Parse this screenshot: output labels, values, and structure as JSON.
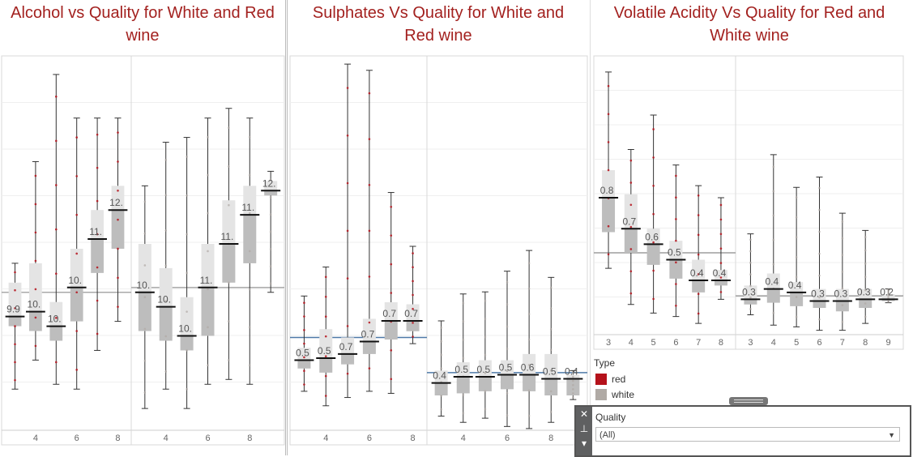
{
  "colors": {
    "red": "#b5121b",
    "white": "#b0aaa5",
    "title": "#a3211f",
    "refline_blue": "#4e79a7",
    "refline_gray": "#9e9e9e"
  },
  "chart_data": [
    {
      "type": "box",
      "title": "Alcohol vs Quality for White and Red wine",
      "xlabel": "",
      "ylabel": "",
      "ylim": [
        7.5,
        15.2
      ],
      "panels": [
        {
          "type": "red",
          "x_ticks": [
            4,
            6,
            8
          ],
          "reference_line": 10.4,
          "boxes": [
            {
              "q": 3,
              "min": 8.4,
              "q1": 9.7,
              "median": 9.9,
              "q3": 10.6,
              "max": 11.0,
              "label": "9.9"
            },
            {
              "q": 4,
              "min": 9.0,
              "q1": 9.6,
              "median": 10.0,
              "q3": 11.0,
              "max": 13.1,
              "label": "10."
            },
            {
              "q": 5,
              "min": 8.5,
              "q1": 9.4,
              "median": 9.7,
              "q3": 10.2,
              "max": 14.9,
              "label": "10."
            },
            {
              "q": 6,
              "min": 8.4,
              "q1": 9.8,
              "median": 10.5,
              "q3": 11.3,
              "max": 14.0,
              "label": "10."
            },
            {
              "q": 7,
              "min": 9.2,
              "q1": 10.8,
              "median": 11.5,
              "q3": 12.1,
              "max": 14.0,
              "label": "11."
            },
            {
              "q": 8,
              "min": 9.8,
              "q1": 11.3,
              "median": 12.1,
              "q3": 12.6,
              "max": 14.0,
              "label": "12."
            }
          ]
        },
        {
          "type": "white",
          "x_ticks": [
            4,
            6,
            8
          ],
          "reference_line": 10.5,
          "boxes": [
            {
              "q": 3,
              "min": 8.0,
              "q1": 9.6,
              "median": 10.4,
              "q3": 11.4,
              "max": 12.6,
              "label": "10."
            },
            {
              "q": 4,
              "min": 8.4,
              "q1": 9.4,
              "median": 10.1,
              "q3": 10.9,
              "max": 13.5,
              "label": "10."
            },
            {
              "q": 5,
              "min": 8.0,
              "q1": 9.2,
              "median": 9.5,
              "q3": 10.3,
              "max": 13.6,
              "label": "10."
            },
            {
              "q": 6,
              "min": 8.5,
              "q1": 9.5,
              "median": 10.5,
              "q3": 11.4,
              "max": 14.0,
              "label": "11."
            },
            {
              "q": 7,
              "min": 8.6,
              "q1": 10.6,
              "median": 11.4,
              "q3": 12.3,
              "max": 14.2,
              "label": "11."
            },
            {
              "q": 8,
              "min": 8.5,
              "q1": 11.0,
              "median": 12.0,
              "q3": 12.6,
              "max": 14.0,
              "label": "11."
            },
            {
              "q": 9,
              "min": 10.4,
              "q1": 12.4,
              "median": 12.5,
              "q3": 12.7,
              "max": 12.9,
              "label": "12."
            }
          ]
        }
      ]
    },
    {
      "type": "box",
      "title": "Sulphates Vs Quality for White and Red wine",
      "xlabel": "",
      "ylabel": "",
      "ylim": [
        0.2,
        2.0
      ],
      "panels": [
        {
          "type": "red",
          "x_ticks": [
            4,
            6,
            8
          ],
          "reference_line": 0.66,
          "boxes": [
            {
              "q": 3,
              "min": 0.4,
              "q1": 0.51,
              "median": 0.55,
              "q3": 0.61,
              "max": 0.86,
              "label": "0.5"
            },
            {
              "q": 4,
              "min": 0.33,
              "q1": 0.49,
              "median": 0.56,
              "q3": 0.7,
              "max": 1.0,
              "label": "0.5"
            },
            {
              "q": 5,
              "min": 0.37,
              "q1": 0.53,
              "median": 0.58,
              "q3": 0.66,
              "max": 1.98,
              "label": "0.7"
            },
            {
              "q": 6,
              "min": 0.4,
              "q1": 0.58,
              "median": 0.64,
              "q3": 0.75,
              "max": 1.95,
              "label": "0.7"
            },
            {
              "q": 7,
              "min": 0.39,
              "q1": 0.65,
              "median": 0.74,
              "q3": 0.83,
              "max": 1.36,
              "label": "0.7"
            },
            {
              "q": 8,
              "min": 0.63,
              "q1": 0.69,
              "median": 0.74,
              "q3": 0.82,
              "max": 1.1,
              "label": "0.7"
            }
          ]
        },
        {
          "type": "white",
          "x_ticks": [
            4,
            6,
            8
          ],
          "reference_line": 0.49,
          "boxes": [
            {
              "q": 3,
              "min": 0.28,
              "q1": 0.38,
              "median": 0.44,
              "q3": 0.5,
              "max": 0.74,
              "label": "0.4"
            },
            {
              "q": 4,
              "min": 0.25,
              "q1": 0.39,
              "median": 0.47,
              "q3": 0.54,
              "max": 0.87,
              "label": "0.5"
            },
            {
              "q": 5,
              "min": 0.27,
              "q1": 0.4,
              "median": 0.47,
              "q3": 0.55,
              "max": 0.88,
              "label": "0.5"
            },
            {
              "q": 6,
              "min": 0.23,
              "q1": 0.41,
              "median": 0.48,
              "q3": 0.55,
              "max": 0.98,
              "label": "0.5"
            },
            {
              "q": 7,
              "min": 0.22,
              "q1": 0.4,
              "median": 0.48,
              "q3": 0.58,
              "max": 1.08,
              "label": "0.6"
            },
            {
              "q": 8,
              "min": 0.25,
              "q1": 0.38,
              "median": 0.46,
              "q3": 0.58,
              "max": 0.95,
              "label": "0.5"
            },
            {
              "q": 9,
              "min": 0.36,
              "q1": 0.38,
              "median": 0.46,
              "q3": 0.48,
              "max": 0.5,
              "label": "0.4"
            }
          ]
        }
      ]
    },
    {
      "type": "box",
      "title": "Volatile Acidity Vs Quality for Red and White wine",
      "xlabel": "",
      "ylabel": "",
      "ylim": [
        0.05,
        1.65
      ],
      "panels": [
        {
          "type": "red",
          "x_ticks": [
            3,
            4,
            5,
            6,
            7,
            8
          ],
          "reference_line": 0.53,
          "boxes": [
            {
              "q": 3,
              "min": 0.44,
              "q1": 0.65,
              "median": 0.85,
              "q3": 1.01,
              "max": 1.58,
              "label": "0.8"
            },
            {
              "q": 4,
              "min": 0.23,
              "q1": 0.53,
              "median": 0.67,
              "q3": 0.87,
              "max": 1.13,
              "label": "0.7"
            },
            {
              "q": 5,
              "min": 0.18,
              "q1": 0.46,
              "median": 0.58,
              "q3": 0.67,
              "max": 1.33,
              "label": "0.6"
            },
            {
              "q": 6,
              "min": 0.16,
              "q1": 0.38,
              "median": 0.49,
              "q3": 0.6,
              "max": 1.04,
              "label": "0.5"
            },
            {
              "q": 7,
              "min": 0.12,
              "q1": 0.3,
              "median": 0.37,
              "q3": 0.49,
              "max": 0.92,
              "label": "0.4"
            },
            {
              "q": 8,
              "min": 0.26,
              "q1": 0.34,
              "median": 0.37,
              "q3": 0.43,
              "max": 0.85,
              "label": "0.4"
            }
          ]
        },
        {
          "type": "white",
          "x_ticks": [
            3,
            4,
            5,
            6,
            7,
            8,
            9
          ],
          "reference_line": 0.28,
          "boxes": [
            {
              "q": 3,
              "min": 0.17,
              "q1": 0.23,
              "median": 0.26,
              "q3": 0.34,
              "max": 0.64,
              "label": "0.3"
            },
            {
              "q": 4,
              "min": 0.11,
              "q1": 0.24,
              "median": 0.32,
              "q3": 0.41,
              "max": 1.1,
              "label": "0.4"
            },
            {
              "q": 5,
              "min": 0.1,
              "q1": 0.22,
              "median": 0.3,
              "q3": 0.36,
              "max": 0.91,
              "label": "0.4"
            },
            {
              "q": 6,
              "min": 0.08,
              "q1": 0.21,
              "median": 0.25,
              "q3": 0.32,
              "max": 0.97,
              "label": "0.3"
            },
            {
              "q": 7,
              "min": 0.08,
              "q1": 0.19,
              "median": 0.25,
              "q3": 0.32,
              "max": 0.76,
              "label": "0.3"
            },
            {
              "q": 8,
              "min": 0.12,
              "q1": 0.21,
              "median": 0.26,
              "q3": 0.32,
              "max": 0.66,
              "label": "0.3"
            },
            {
              "q": 9,
              "min": 0.24,
              "q1": 0.25,
              "median": 0.26,
              "q3": 0.29,
              "max": 0.32,
              "label": "0.2"
            }
          ]
        }
      ]
    }
  ],
  "legend": {
    "title": "Type",
    "items": [
      {
        "label": "red",
        "color": "#b5121b"
      },
      {
        "label": "white",
        "color": "#b0aaa5"
      }
    ]
  },
  "filter": {
    "label": "Quality",
    "value": "(All)"
  }
}
